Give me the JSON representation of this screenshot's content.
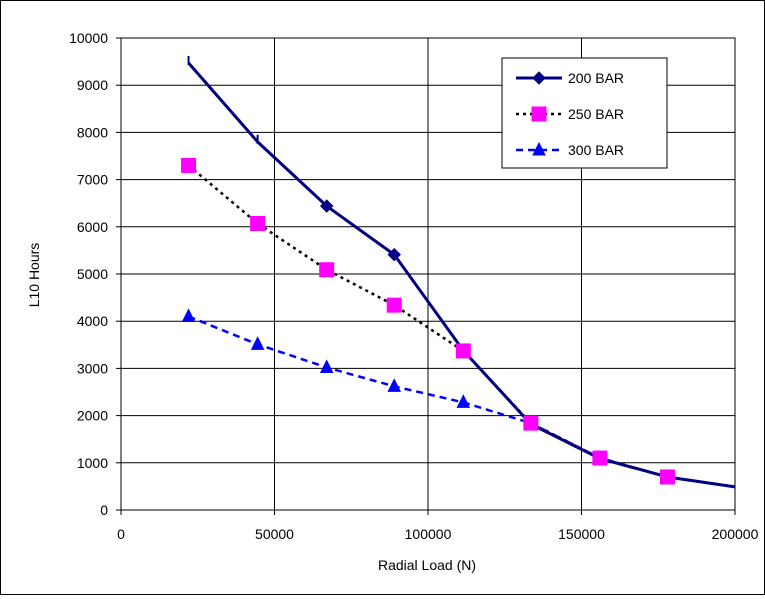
{
  "chart_data": {
    "type": "line",
    "title": "",
    "xlabel": "Radial Load (N)",
    "ylabel": "L10 Hours",
    "xlim": [
      0,
      200000
    ],
    "ylim": [
      0,
      10000
    ],
    "xticks": [
      0,
      50000,
      100000,
      150000,
      200000
    ],
    "yticks": [
      0,
      1000,
      2000,
      3000,
      4000,
      5000,
      6000,
      7000,
      8000,
      9000,
      10000
    ],
    "grid": true,
    "legend_position": "top-right",
    "series": [
      {
        "name": "200 BAR",
        "color": "#000080",
        "line_style": "solid",
        "marker": "diamond",
        "x": [
          22000,
          44500,
          67000,
          89000,
          111500,
          133500,
          156000,
          178000,
          200000
        ],
        "y": [
          9470,
          7800,
          6440,
          5410,
          3380,
          1820,
          1090,
          700,
          490
        ],
        "marker_shown": [
          false,
          false,
          true,
          true,
          false,
          false,
          false,
          false,
          false
        ]
      },
      {
        "name": "250 BAR",
        "color": "#000000",
        "marker_color": "#FF00FF",
        "line_style": "dotted",
        "marker": "square",
        "x": [
          22000,
          44500,
          67000,
          89000,
          111500,
          133500,
          156000,
          178000,
          200000
        ],
        "y": [
          7300,
          6070,
          5090,
          4340,
          3370,
          1840,
          1100,
          700,
          490
        ],
        "marker_shown": [
          true,
          true,
          true,
          true,
          true,
          true,
          true,
          true,
          false
        ]
      },
      {
        "name": "300 BAR",
        "color": "#0000FF",
        "line_style": "dashed",
        "marker": "triangle",
        "x": [
          22000,
          44500,
          67000,
          89000,
          111500,
          133500,
          156000,
          178000,
          200000
        ],
        "y": [
          4100,
          3510,
          3020,
          2620,
          2280,
          1840,
          1100,
          700,
          490
        ],
        "marker_shown": [
          true,
          true,
          true,
          true,
          true,
          true,
          true,
          true,
          false
        ]
      }
    ]
  }
}
